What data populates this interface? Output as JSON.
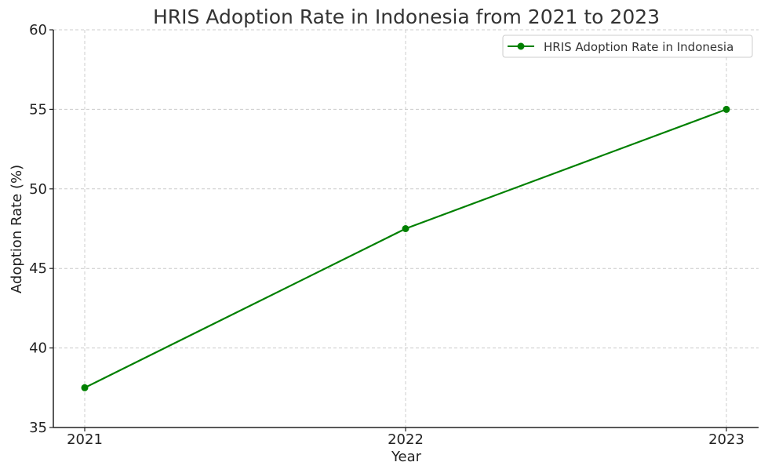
{
  "chart_data": {
    "type": "line",
    "title": "HRIS Adoption Rate in Indonesia from 2021 to 2023",
    "xlabel": "Year",
    "ylabel": "Adoption Rate (%)",
    "categories": [
      "2021",
      "2022",
      "2023"
    ],
    "x": [
      2021,
      2022,
      2023
    ],
    "series": [
      {
        "name": "HRIS Adoption Rate in Indonesia",
        "values": [
          37.5,
          47.5,
          55
        ],
        "color": "#008000",
        "marker": "circle"
      }
    ],
    "ylim": [
      35,
      60
    ],
    "yticks": [
      35,
      40,
      45,
      50,
      55,
      60
    ],
    "xticks": [
      "2021",
      "2022",
      "2023"
    ],
    "grid": true,
    "legend_position": "upper right"
  }
}
